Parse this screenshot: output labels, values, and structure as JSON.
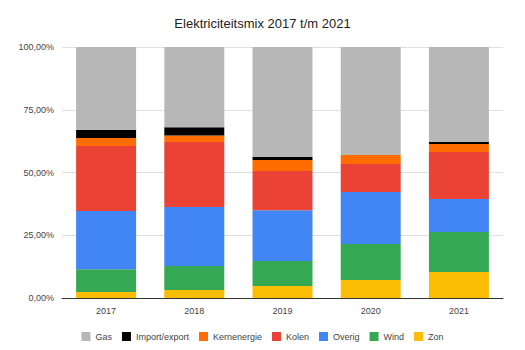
{
  "chart_data": {
    "type": "bar",
    "title": "Elektriciteitsmix 2017 t/m 2021",
    "stacked": true,
    "grid": true,
    "legend": "bottom",
    "categories": [
      "2017",
      "2018",
      "2019",
      "2020",
      "2021"
    ],
    "series": [
      {
        "name": "Gas",
        "color": "#b7b7b7",
        "values": [
          33.1,
          32.0,
          43.8,
          43.0,
          37.8
        ]
      },
      {
        "name": "Import/export",
        "color": "#000000",
        "values": [
          3.2,
          3.3,
          1.2,
          0,
          0.8
        ]
      },
      {
        "name": "Kernenergie",
        "color": "#ff6d01",
        "values": [
          3.1,
          2.5,
          4.4,
          3.6,
          3.2
        ]
      },
      {
        "name": "Kolen",
        "color": "#ea4335",
        "values": [
          25.9,
          25.9,
          15.6,
          11.2,
          18.8
        ]
      },
      {
        "name": "Overig",
        "color": "#4285f4",
        "values": [
          23.2,
          23.6,
          20.3,
          20.7,
          13.1
        ]
      },
      {
        "name": "Wind",
        "color": "#34a853",
        "values": [
          9.1,
          9.5,
          9.9,
          14.3,
          15.9
        ]
      },
      {
        "name": "Zon",
        "color": "#fbbc04",
        "values": [
          2.4,
          3.2,
          4.8,
          7.2,
          10.4
        ]
      }
    ],
    "ylim": [
      0,
      100
    ],
    "yticks": [
      {
        "value": 0,
        "label": "0,00%"
      },
      {
        "value": 25,
        "label": "25,00%"
      },
      {
        "value": 50,
        "label": "50,00%"
      },
      {
        "value": 75,
        "label": "75,00%"
      },
      {
        "value": 100,
        "label": "100,00%"
      }
    ]
  }
}
